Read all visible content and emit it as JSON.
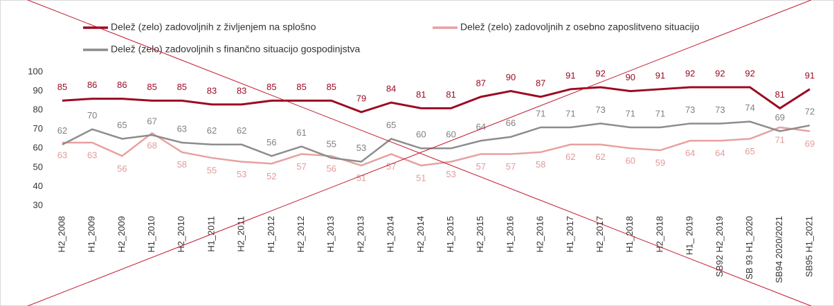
{
  "chart_data": {
    "type": "line",
    "categories": [
      "H2_2008",
      "H1_2009",
      "H2_2009",
      "H1_2010",
      "H2_2010",
      "H1_2011",
      "H2_2011",
      "H1_2012",
      "H2_2012",
      "H1_2013",
      "H2_2013",
      "H1_2014",
      "H2_2014",
      "H1_2015",
      "H2_2015",
      "H1_2016",
      "H2_2016",
      "H1_2017",
      "H2_2017",
      "H1_2018",
      "H2_2018",
      "H1_ 2019",
      "SB92 H2_2019",
      "SB 93 H1_2020",
      "SB94 2020/2021",
      "SB95 H1_2021"
    ],
    "series": [
      {
        "name": "Delež (zelo) zadovoljnih z življenjem na splošno",
        "color": "#9b0a22",
        "label_color": "#9b0a22",
        "values": [
          85,
          86,
          86,
          85,
          85,
          83,
          83,
          85,
          85,
          85,
          79,
          84,
          81,
          81,
          87,
          90,
          87,
          91,
          92,
          90,
          91,
          92,
          92,
          92,
          81,
          91
        ]
      },
      {
        "name": "Delež (zelo) zadovoljnih z osebno zaposlitveno situacijo",
        "color": "#e8a0a0",
        "label_color": "#e39a9a",
        "values": [
          63,
          63,
          56,
          68,
          58,
          55,
          53,
          52,
          57,
          56,
          51,
          57,
          51,
          53,
          57,
          57,
          58,
          62,
          62,
          60,
          59,
          64,
          64,
          65,
          71,
          69
        ]
      },
      {
        "name": "Delež (zelo) zadovoljnih s finančno situacijo gospodinjstva",
        "color": "#8c8c8c",
        "label_color": "#808080",
        "values": [
          62,
          70,
          65,
          67,
          63,
          62,
          62,
          56,
          61,
          55,
          53,
          65,
          60,
          60,
          64,
          66,
          71,
          71,
          73,
          71,
          71,
          73,
          73,
          74,
          69,
          72
        ]
      }
    ],
    "ylim": [
      30,
      100
    ],
    "yticks": [
      30,
      40,
      50,
      60,
      70,
      80,
      90,
      100
    ],
    "grid": false
  }
}
